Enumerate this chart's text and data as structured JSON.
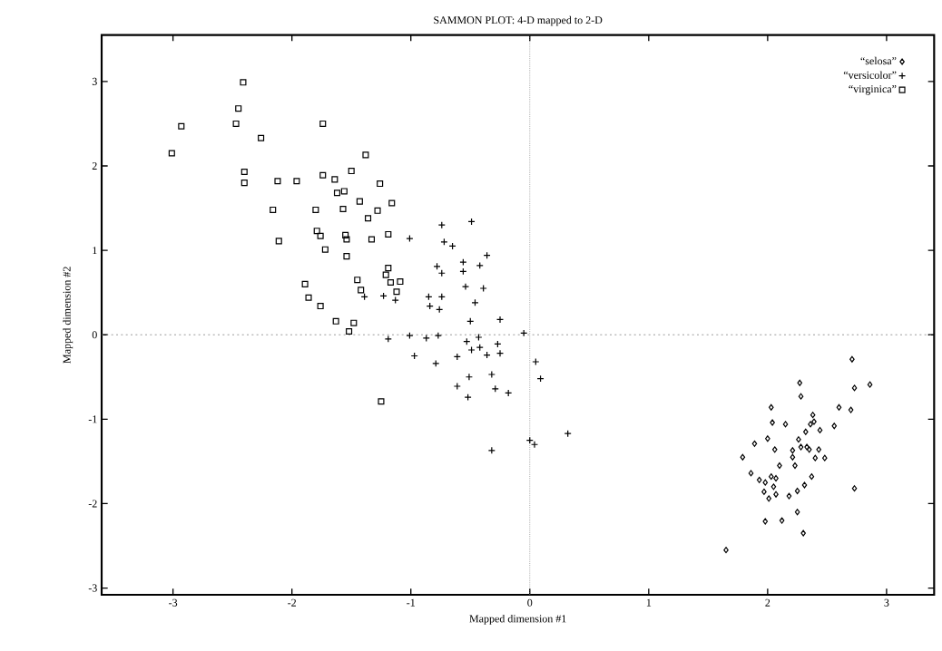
{
  "chart_data": {
    "type": "scatter",
    "title": "SAMMON PLOT: 4-D mapped to 2-D",
    "xlabel": "Mapped dimension #1",
    "ylabel": "Mapped dimension #2",
    "xlim": [
      -3.6,
      3.4
    ],
    "ylim": [
      -3.08,
      3.55
    ],
    "xticks": [
      -3,
      -2,
      -1,
      0,
      1,
      2,
      3
    ],
    "yticks": [
      -3,
      -2,
      -1,
      0,
      1,
      2,
      3
    ],
    "grid": false,
    "legend": "top right",
    "ref_lines": [
      {
        "axis": "x",
        "value": 0,
        "color": "#808080",
        "line_style": "dotted"
      },
      {
        "axis": "y",
        "value": 0,
        "color": "#808080",
        "line_style": "dashed"
      }
    ],
    "series": [
      {
        "name": "“selosa”",
        "color": "#000000",
        "marker": "diamond",
        "x": [
          2.71,
          2.27,
          2.73,
          2.86,
          2.28,
          2.03,
          2.6,
          2.7,
          2.38,
          2.04,
          2.15,
          2.36,
          2.39,
          2.56,
          2.32,
          2.44,
          2.0,
          2.26,
          1.89,
          2.28,
          2.33,
          2.35,
          2.43,
          2.06,
          2.21,
          1.79,
          2.21,
          2.4,
          2.48,
          2.1,
          2.23,
          1.86,
          2.03,
          2.07,
          1.93,
          2.37,
          1.98,
          2.05,
          2.73,
          2.31,
          1.97,
          2.07,
          2.25,
          2.01,
          2.18,
          2.25,
          1.98,
          2.12,
          2.3,
          1.65
        ],
        "values": [
          -0.29,
          -0.57,
          -0.63,
          -0.59,
          -0.73,
          -0.86,
          -0.86,
          -0.89,
          -0.95,
          -1.04,
          -1.06,
          -1.06,
          -1.03,
          -1.08,
          -1.15,
          -1.13,
          -1.23,
          -1.24,
          -1.29,
          -1.33,
          -1.33,
          -1.36,
          -1.36,
          -1.36,
          -1.37,
          -1.45,
          -1.45,
          -1.46,
          -1.46,
          -1.55,
          -1.55,
          -1.64,
          -1.68,
          -1.7,
          -1.72,
          -1.68,
          -1.75,
          -1.8,
          -1.82,
          -1.78,
          -1.86,
          -1.89,
          -1.85,
          -1.94,
          -1.91,
          -2.1,
          -2.21,
          -2.2,
          -2.35,
          -2.55
        ]
      },
      {
        "name": "“versicolor”",
        "color": "#000000",
        "marker": "cross",
        "x": [
          -0.74,
          -0.49,
          -1.01,
          -0.72,
          -0.65,
          -0.36,
          -0.56,
          -0.42,
          -0.78,
          -0.74,
          -0.56,
          -0.54,
          -0.39,
          -1.39,
          -1.23,
          -1.13,
          -0.85,
          -0.74,
          -0.46,
          -0.84,
          -0.76,
          -0.5,
          -0.25,
          -0.05,
          -1.19,
          -1.01,
          -0.87,
          -0.77,
          -0.43,
          -0.53,
          -0.27,
          -0.49,
          -0.42,
          -0.36,
          -0.25,
          -0.61,
          -0.97,
          -0.79,
          0.05,
          0.09,
          -0.51,
          -0.32,
          -0.61,
          -0.29,
          -0.18,
          -0.52,
          0.32,
          0.0,
          0.04,
          -0.32
        ],
        "values": [
          1.3,
          1.34,
          1.14,
          1.1,
          1.05,
          0.94,
          0.86,
          0.82,
          0.81,
          0.73,
          0.75,
          0.57,
          0.55,
          0.45,
          0.46,
          0.41,
          0.45,
          0.45,
          0.38,
          0.34,
          0.3,
          0.16,
          0.18,
          0.02,
          -0.05,
          -0.01,
          -0.04,
          -0.01,
          -0.03,
          -0.08,
          -0.11,
          -0.18,
          -0.15,
          -0.24,
          -0.22,
          -0.26,
          -0.25,
          -0.34,
          -0.32,
          -0.52,
          -0.5,
          -0.47,
          -0.61,
          -0.64,
          -0.69,
          -0.74,
          -1.17,
          -1.25,
          -1.3,
          -1.37
        ]
      },
      {
        "name": "“virginica”",
        "color": "#000000",
        "marker": "square",
        "x": [
          -2.41,
          -2.45,
          -2.47,
          -2.93,
          -3.01,
          -2.26,
          -1.74,
          -1.38,
          -2.4,
          -2.4,
          -2.12,
          -1.96,
          -1.74,
          -1.64,
          -1.5,
          -1.26,
          -1.62,
          -1.56,
          -1.43,
          -1.16,
          -1.28,
          -1.36,
          -2.16,
          -1.8,
          -1.57,
          -2.11,
          -1.79,
          -1.76,
          -1.55,
          -1.54,
          -1.33,
          -1.19,
          -1.72,
          -1.54,
          -1.19,
          -1.21,
          -1.17,
          -1.45,
          -1.89,
          -1.86,
          -1.42,
          -1.12,
          -1.76,
          -1.63,
          -1.48,
          -1.52,
          -1.09,
          -1.25
        ],
        "values": [
          2.99,
          2.68,
          2.5,
          2.47,
          2.15,
          2.33,
          2.5,
          2.13,
          1.93,
          1.8,
          1.82,
          1.82,
          1.89,
          1.84,
          1.94,
          1.79,
          1.68,
          1.7,
          1.58,
          1.56,
          1.47,
          1.38,
          1.48,
          1.48,
          1.49,
          1.11,
          1.23,
          1.17,
          1.18,
          1.13,
          1.13,
          1.19,
          1.01,
          0.93,
          0.79,
          0.71,
          0.62,
          0.65,
          0.6,
          0.44,
          0.53,
          0.51,
          0.34,
          0.16,
          0.14,
          0.04,
          0.63,
          -0.79
        ]
      }
    ]
  }
}
